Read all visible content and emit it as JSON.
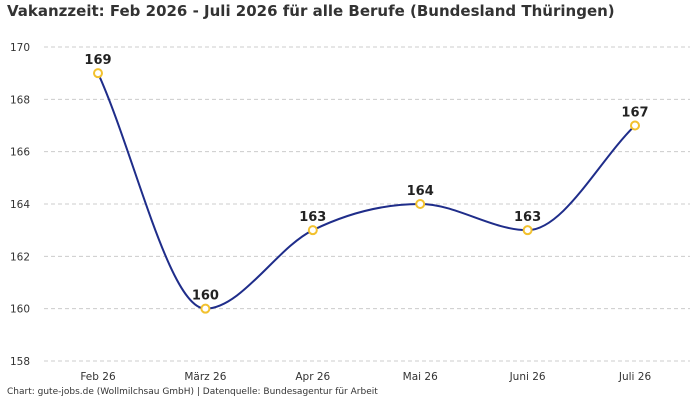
{
  "chart_data": {
    "type": "line",
    "title": "Vakanzzeit: Feb 2026 - Juli 2026 für alle Berufe (Bundesland Thüringen)",
    "xlabel": "",
    "ylabel": "",
    "categories": [
      "Feb 26",
      "März 26",
      "Apr 26",
      "Mai 26",
      "Juni 26",
      "Juli 26"
    ],
    "series": [
      {
        "values": [
          169,
          160,
          163,
          164,
          163,
          167
        ]
      }
    ],
    "ylim": [
      158,
      170
    ],
    "yticks": [
      158,
      160,
      162,
      164,
      166,
      168,
      170
    ],
    "grid": true,
    "line_color": "#1f2d8a",
    "marker_color": "#f2c12e",
    "grid_color": "#cccccc"
  },
  "footer": "Chart: gute-jobs.de (Wollmilchsau GmbH) | Datenquelle: Bundesagentur für Arbeit"
}
